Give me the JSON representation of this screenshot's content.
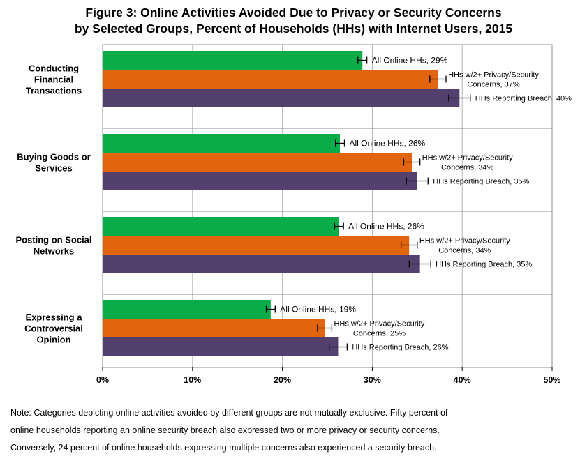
{
  "title_line1": "Figure 3: Online Activities Avoided Due to Privacy or Security Concerns",
  "title_line2": "by Selected Groups, Percent of Households (HHs) with Internet Users, 2015",
  "note_lines": [
    "Note: Categories depicting online activities avoided by different groups are not mutually exclusive. Fifty percent of",
    "online households reporting an online security breach also expressed two or more privacy or security concerns.",
    "Conversely, 24 percent of online households expressing multiple concerns also experienced a security breach."
  ],
  "chart_data": {
    "type": "bar",
    "orientation": "horizontal",
    "title": "Figure 3: Online Activities Avoided Due to Privacy or Security Concerns by Selected Groups, Percent of Households (HHs) with Internet Users, 2015",
    "xlabel": "",
    "ylabel": "",
    "xlim": [
      0,
      50
    ],
    "xticks": [
      0,
      10,
      20,
      30,
      40,
      50
    ],
    "xtick_labels": [
      "0%",
      "10%",
      "20%",
      "30%",
      "40%",
      "50%"
    ],
    "grid": true,
    "categories": [
      [
        "Conducting",
        "Financial",
        "Transactions"
      ],
      [
        "Buying Goods or",
        "Services"
      ],
      [
        "Posting on Social",
        "Networks"
      ],
      [
        "Expressing a",
        "Controversial",
        "Opinion"
      ]
    ],
    "series": [
      {
        "name": "All Online HHs",
        "color": "#0aac4a",
        "values": [
          28.9,
          26.4,
          26.3,
          18.7
        ],
        "error": [
          0.5,
          0.5,
          0.5,
          0.5
        ],
        "labels": [
          [
            "All Online HHs, 29%"
          ],
          [
            "All Online HHs, 26%"
          ],
          [
            "All Online HHs, 26%"
          ],
          [
            "All Online HHs, 19%"
          ]
        ]
      },
      {
        "name": "HHs w/2+ Privacy/Security Concerns",
        "color": "#e2640e",
        "values": [
          37.3,
          34.4,
          34.1,
          24.7
        ],
        "error": [
          0.9,
          0.9,
          0.9,
          0.8
        ],
        "labels": [
          [
            "HHs w/2+ Privacy/Security",
            "Concerns, 37%"
          ],
          [
            "HHs w/2+ Privacy/Security",
            "Concerns, 34%"
          ],
          [
            "HHs w/2+ Privacy/Security",
            "Concerns, 34%"
          ],
          [
            "HHs w/2+ Privacy/Security",
            "Concerns, 25%"
          ]
        ]
      },
      {
        "name": "HHs Reporting Breach",
        "color": "#54406e",
        "values": [
          39.7,
          35.0,
          35.3,
          26.2
        ],
        "error": [
          1.2,
          1.2,
          1.2,
          1.0
        ],
        "labels": [
          [
            "HHs Reporting Breach, 40%"
          ],
          [
            "HHs Reporting Breach, 35%"
          ],
          [
            "HHs Reporting Breach, 35%"
          ],
          [
            "HHs Reporting Breach, 26%"
          ]
        ]
      }
    ]
  }
}
